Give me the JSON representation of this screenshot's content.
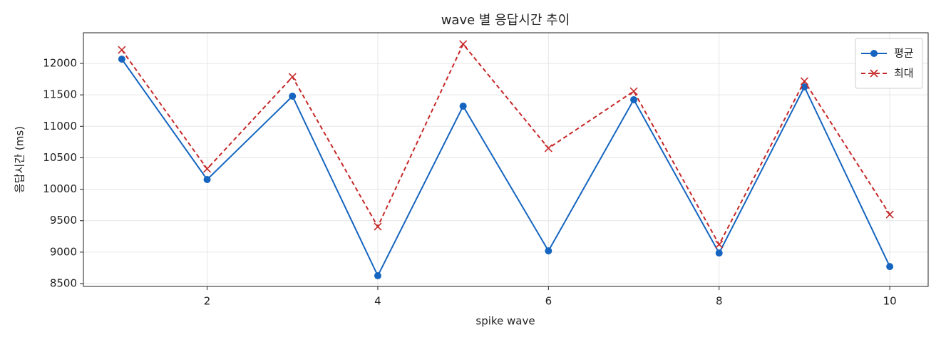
{
  "chart_data": {
    "type": "line",
    "title": "wave 별 응답시간 추이",
    "x_label": "spike wave",
    "y_label": "응답시간 (ms)",
    "x": [
      1,
      2,
      3,
      4,
      5,
      6,
      7,
      8,
      9,
      10
    ],
    "series": [
      {
        "name": "평균",
        "color": "#1565c0",
        "marker": "circle",
        "dashed": false,
        "values": [
          12068,
          10154,
          11479,
          8625,
          11321,
          9020,
          11423,
          8986,
          11626,
          8771
        ]
      },
      {
        "name": "최대",
        "color": "#c62828",
        "marker": "x",
        "dashed": true,
        "values": [
          12215,
          10324,
          11785,
          9405,
          12306,
          10652,
          11558,
          9122,
          11717,
          9598
        ]
      }
    ],
    "xlim": [
      0.55,
      10.45
    ],
    "ylim": [
      8455,
      12487
    ],
    "xticks": [
      2,
      4,
      6,
      8,
      10
    ],
    "yticks": [
      8500,
      9000,
      9500,
      10000,
      10500,
      11000,
      11500,
      12000
    ],
    "grid": true,
    "legend": "upper right"
  }
}
